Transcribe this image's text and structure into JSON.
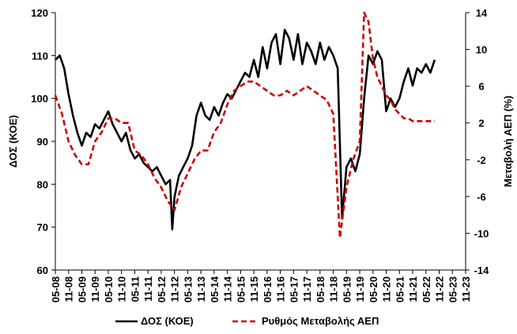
{
  "chart_data": {
    "type": "line",
    "title": "",
    "ylabel_left": "ΔΟΣ (ΚΟΕ)",
    "ylabel_right": "Μεταβολή ΑΕΠ (%)",
    "ylim_left": [
      60,
      120
    ],
    "yticks_left": [
      60,
      70,
      80,
      90,
      100,
      110,
      120
    ],
    "ylim_right": [
      -14,
      14
    ],
    "yticks_right": [
      -14,
      -10,
      -6,
      -2,
      2,
      6,
      10,
      14
    ],
    "x_start": "05-08",
    "x_end": "11-23",
    "x_ticks": [
      "05-08",
      "11-08",
      "05-09",
      "11-09",
      "05-10",
      "11-10",
      "05-11",
      "11-11",
      "05-12",
      "11-12",
      "05-13",
      "11-13",
      "05-14",
      "11-14",
      "05-15",
      "11-15",
      "05-16",
      "11-16",
      "05-17",
      "11-17",
      "05-18",
      "11-18",
      "05-19",
      "11-19",
      "05-20",
      "11-20",
      "05-21",
      "11-21",
      "05-22",
      "11-22",
      "05-23",
      "11-23"
    ],
    "grid": false,
    "legend_position": "bottom",
    "series": [
      {
        "name": "ΔΟΣ (ΚΟΕ)",
        "axis": "left",
        "color": "#000000",
        "style": "solid",
        "points": [
          [
            "05-08",
            109
          ],
          [
            "07-08",
            110
          ],
          [
            "09-08",
            107
          ],
          [
            "11-08",
            101
          ],
          [
            "01-09",
            96
          ],
          [
            "03-09",
            92
          ],
          [
            "05-09",
            89
          ],
          [
            "07-09",
            92
          ],
          [
            "09-09",
            91
          ],
          [
            "11-09",
            94
          ],
          [
            "01-10",
            93
          ],
          [
            "03-10",
            95
          ],
          [
            "05-10",
            97
          ],
          [
            "07-10",
            94
          ],
          [
            "09-10",
            92
          ],
          [
            "11-10",
            90
          ],
          [
            "01-11",
            92
          ],
          [
            "03-11",
            88
          ],
          [
            "05-11",
            86
          ],
          [
            "07-11",
            87
          ],
          [
            "09-11",
            85
          ],
          [
            "11-11",
            84
          ],
          [
            "01-12",
            83
          ],
          [
            "03-12",
            84
          ],
          [
            "05-12",
            82
          ],
          [
            "07-12",
            80
          ],
          [
            "09-12",
            81
          ],
          [
            "10-12",
            69.5
          ],
          [
            "11-12",
            77
          ],
          [
            "01-13",
            82
          ],
          [
            "03-13",
            84
          ],
          [
            "05-13",
            86
          ],
          [
            "07-13",
            89
          ],
          [
            "09-13",
            96
          ],
          [
            "11-13",
            99
          ],
          [
            "01-14",
            96
          ],
          [
            "03-14",
            95
          ],
          [
            "05-14",
            98
          ],
          [
            "07-14",
            96
          ],
          [
            "09-14",
            99
          ],
          [
            "11-14",
            101
          ],
          [
            "01-15",
            100
          ],
          [
            "03-15",
            102
          ],
          [
            "05-15",
            104
          ],
          [
            "07-15",
            106
          ],
          [
            "09-15",
            105
          ],
          [
            "11-15",
            109
          ],
          [
            "01-16",
            105
          ],
          [
            "03-16",
            112
          ],
          [
            "05-16",
            107
          ],
          [
            "07-16",
            113
          ],
          [
            "09-16",
            115
          ],
          [
            "11-16",
            108
          ],
          [
            "01-17",
            116
          ],
          [
            "03-17",
            114
          ],
          [
            "05-17",
            109
          ],
          [
            "07-17",
            115
          ],
          [
            "09-17",
            108
          ],
          [
            "11-17",
            113
          ],
          [
            "01-18",
            111
          ],
          [
            "03-18",
            108
          ],
          [
            "05-18",
            113
          ],
          [
            "07-18",
            109
          ],
          [
            "09-18",
            112
          ],
          [
            "11-18",
            110
          ],
          [
            "01-19",
            107
          ],
          [
            "03-19",
            72
          ],
          [
            "05-19",
            84
          ],
          [
            "07-19",
            86
          ],
          [
            "09-19",
            83
          ],
          [
            "11-19",
            87
          ],
          [
            "01-20",
            100
          ],
          [
            "03-20",
            110
          ],
          [
            "05-20",
            108
          ],
          [
            "07-20",
            111
          ],
          [
            "09-20",
            109
          ],
          [
            "11-20",
            97
          ],
          [
            "01-21",
            100
          ],
          [
            "03-21",
            98
          ],
          [
            "05-21",
            100
          ],
          [
            "07-21",
            104
          ],
          [
            "09-21",
            107
          ],
          [
            "11-21",
            103
          ],
          [
            "01-22",
            107
          ],
          [
            "03-22",
            106
          ],
          [
            "05-22",
            108
          ],
          [
            "07-22",
            106
          ],
          [
            "09-22",
            109
          ]
        ]
      },
      {
        "name": "Ρυθμός Μεταβολής ΑΕΠ",
        "axis": "right",
        "color": "#cc0000",
        "style": "dashed",
        "points": [
          [
            "05-08",
            5
          ],
          [
            "08-08",
            3
          ],
          [
            "11-08",
            0
          ],
          [
            "02-09",
            -1.5
          ],
          [
            "05-09",
            -2.5
          ],
          [
            "08-09",
            -2.5
          ],
          [
            "11-09",
            0
          ],
          [
            "02-10",
            1
          ],
          [
            "05-10",
            2.5
          ],
          [
            "08-10",
            2.5
          ],
          [
            "11-10",
            2
          ],
          [
            "02-11",
            2
          ],
          [
            "05-11",
            -1
          ],
          [
            "08-11",
            -1.5
          ],
          [
            "11-11",
            -2.5
          ],
          [
            "02-12",
            -4
          ],
          [
            "05-12",
            -5
          ],
          [
            "08-12",
            -6.5
          ],
          [
            "11-12",
            -7.5
          ],
          [
            "02-13",
            -5
          ],
          [
            "05-13",
            -3.5
          ],
          [
            "08-13",
            -2
          ],
          [
            "11-13",
            -1
          ],
          [
            "02-14",
            -1
          ],
          [
            "05-14",
            1
          ],
          [
            "08-14",
            2
          ],
          [
            "11-14",
            4
          ],
          [
            "02-15",
            5.5
          ],
          [
            "05-15",
            6
          ],
          [
            "08-15",
            6.5
          ],
          [
            "11-15",
            6.5
          ],
          [
            "02-16",
            6
          ],
          [
            "05-16",
            5.5
          ],
          [
            "08-16",
            5
          ],
          [
            "11-16",
            5
          ],
          [
            "02-17",
            5.5
          ],
          [
            "05-17",
            5
          ],
          [
            "08-17",
            5.5
          ],
          [
            "11-17",
            6
          ],
          [
            "02-18",
            5.5
          ],
          [
            "05-18",
            5
          ],
          [
            "08-18",
            4.5
          ],
          [
            "11-18",
            3
          ],
          [
            "02-19",
            -10.5
          ],
          [
            "05-19",
            -5
          ],
          [
            "08-19",
            -2
          ],
          [
            "11-19",
            0
          ],
          [
            "01-20",
            14
          ],
          [
            "03-20",
            13
          ],
          [
            "05-20",
            9
          ],
          [
            "07-20",
            7
          ],
          [
            "09-20",
            6
          ],
          [
            "11-20",
            5
          ],
          [
            "01-21",
            4.5
          ],
          [
            "03-21",
            3.5
          ],
          [
            "05-21",
            3
          ],
          [
            "07-21",
            2.5
          ],
          [
            "09-21",
            2.5
          ],
          [
            "11-21",
            2.2
          ],
          [
            "02-22",
            2.2
          ],
          [
            "05-22",
            2.2
          ],
          [
            "09-22",
            2.2
          ]
        ]
      }
    ]
  }
}
